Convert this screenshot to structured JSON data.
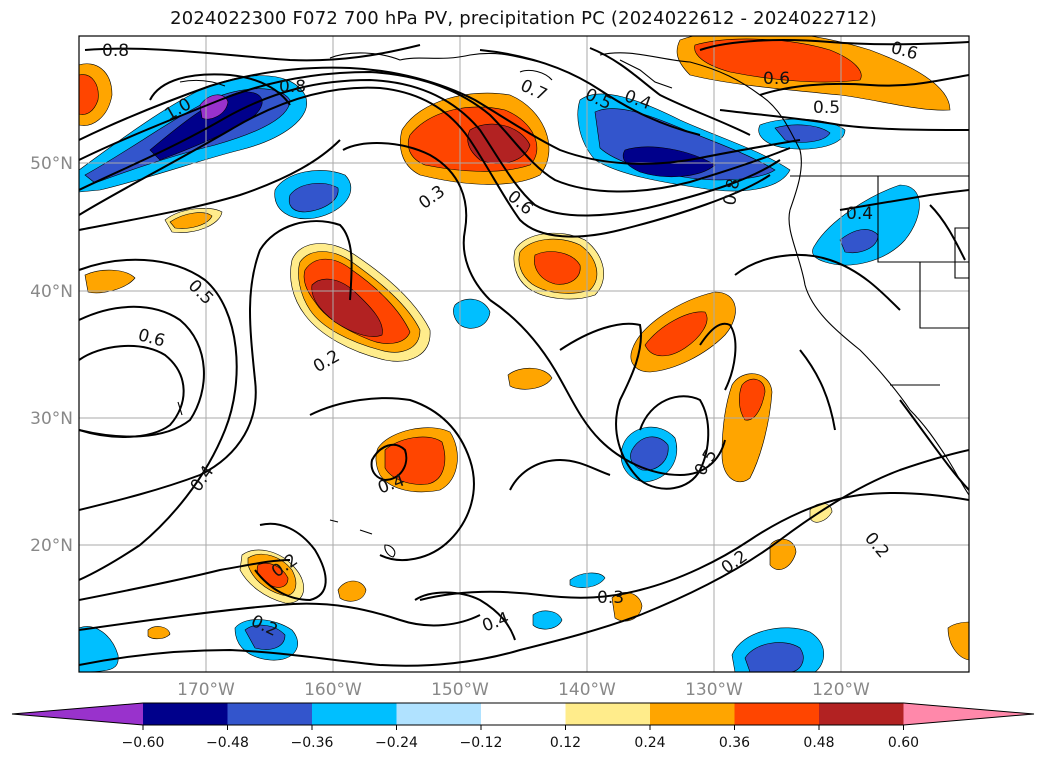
{
  "title": "2024022300 F072 700 hPa PV, precipitation PC (2024022612 - 2024022712)",
  "map": {
    "region": "North Pacific",
    "latitude_labels": [
      "50°N",
      "40°N",
      "30°N",
      "20°N"
    ],
    "longitude_labels": [
      "170°W",
      "160°W",
      "150°W",
      "140°W",
      "130°W",
      "120°W"
    ],
    "gridlines": true,
    "contour_labels": [
      "0.8",
      "1.0",
      "0.8",
      "0.7",
      "0.5",
      "0.4",
      "0.6",
      "0.6",
      "0.5",
      "0.3",
      "0.6",
      "0.8",
      "0.4",
      "0.5",
      "0.6",
      "0.2",
      "0.4",
      "0.4",
      "0.5",
      "0.2",
      "0.2",
      "0.4",
      "0.3",
      "0.2",
      "0.2"
    ]
  },
  "colorbar": {
    "ticks": [
      "−0.60",
      "−0.48",
      "−0.36",
      "−0.24",
      "−0.12",
      "0.12",
      "0.24",
      "0.36",
      "0.48",
      "0.60"
    ],
    "colors": [
      "#9932cc",
      "#00008b",
      "#3355cc",
      "#00bfff",
      "#b0e2ff",
      "#ffffff",
      "#ffec8b",
      "#ffa500",
      "#ff4500",
      "#b22222",
      "#ff88aa"
    ]
  }
}
